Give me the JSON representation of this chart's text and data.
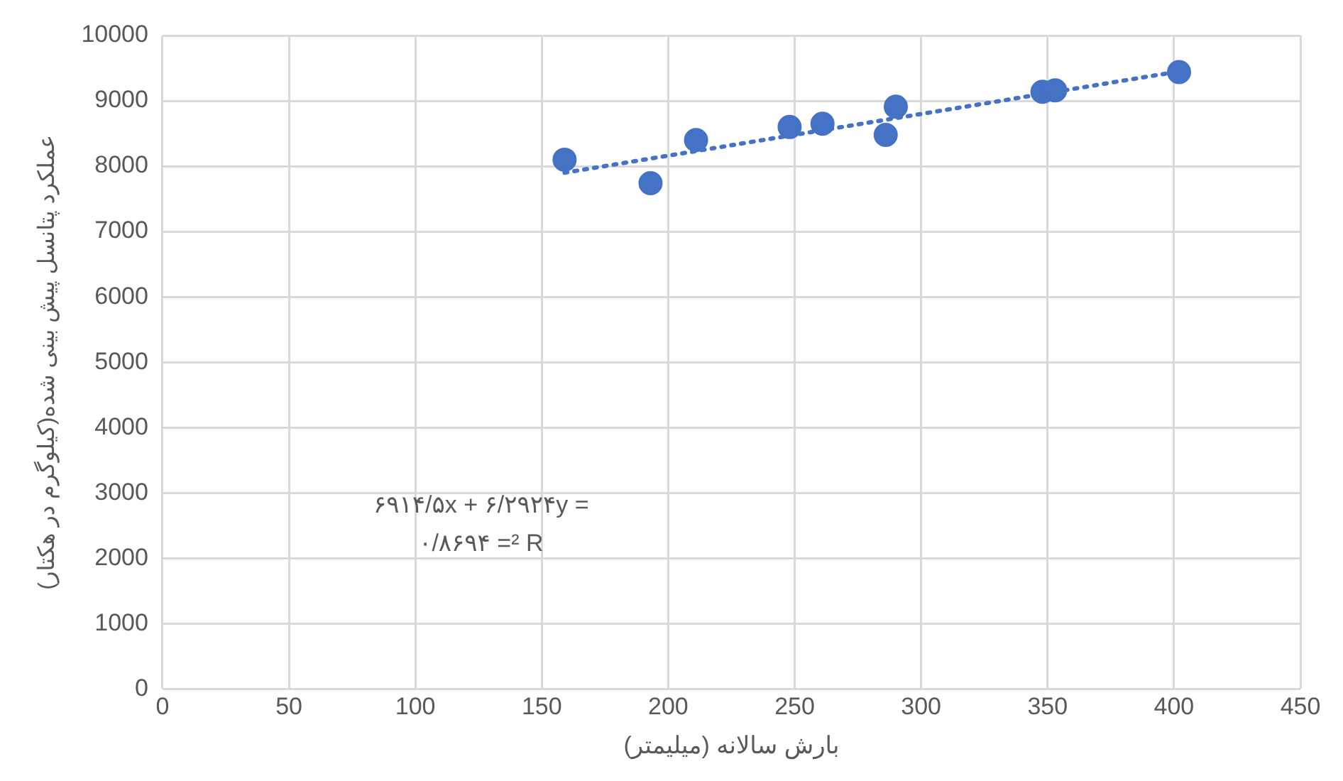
{
  "chart_data": {
    "type": "scatter",
    "xlabel": "بارش سالانه (میلیمتر)",
    "ylabel": "عملکرد پتانسل پیش بینی شده(کیلوگرم در هکتار)",
    "xlim": [
      0,
      450
    ],
    "xticks": [
      0,
      50,
      100,
      150,
      200,
      250,
      300,
      350,
      400,
      450
    ],
    "ylim": [
      0,
      10000
    ],
    "yticks": [
      0,
      1000,
      2000,
      3000,
      4000,
      5000,
      6000,
      7000,
      8000,
      9000,
      10000
    ],
    "grid": true,
    "legend": false,
    "marker": "circle",
    "series": [
      {
        "color": "#4472c4",
        "x": [
          159,
          193,
          211,
          248,
          261,
          286,
          290,
          348,
          353,
          402
        ],
        "values": [
          8100,
          7740,
          8400,
          8600,
          8650,
          8480,
          8910,
          9140,
          9160,
          9440
        ]
      },
      {
        "type": "line",
        "color": "#4472c4",
        "line_style": "dotted",
        "marker": "none",
        "x": [
          159,
          402
        ],
        "values": [
          7900,
          9450
        ]
      }
    ],
    "annotations": [
      "۶۹۱۴/۵x + ۶/۲۹۲۴y =",
      "۰/۸۶۹۴ =² R"
    ]
  }
}
